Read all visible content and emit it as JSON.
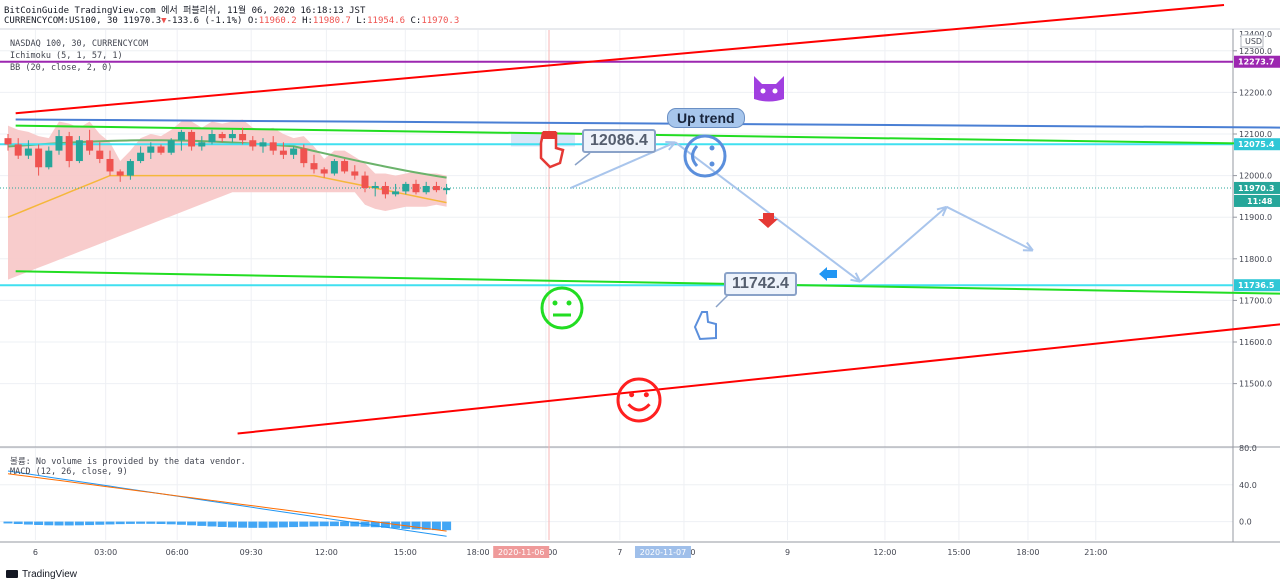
{
  "header": {
    "line1": "BitCoinGuide TradingView.com 에서 퍼블리쉬, 11월 06, 2020 16:18:13 JST",
    "symbol": "CURRENCYCOM:US100, 30",
    "last": "11970.3",
    "change_arrow": "▼",
    "change": "-133.6 (-1.1%)",
    "o_label": "O:",
    "o": "11960.2",
    "h_label": "H:",
    "h": "11980.7",
    "l_label": "L:",
    "l": "11954.6",
    "c_label": "C:",
    "c": "11970.3"
  },
  "indicators": [
    "NASDAQ 100, 30, CURRENCYCOM",
    "Ichimoku (5, 1, 57, 1)",
    "BB (20, close, 2, 0)"
  ],
  "volume_msg": "볼륨: No volume is provided by the data vendor.",
  "macd_label": "MACD (12, 26, close, 9)",
  "brand": "TradingView",
  "colors": {
    "up": "#26a69a",
    "down": "#ef5350",
    "trend_red": "#ff0000",
    "trend_green": "#22dd22",
    "cyan": "#40e0f0",
    "purple": "#9c27b0",
    "blue_line": "#4a7fd4",
    "cloud": "#f7c6c6",
    "bb_mid": "#6bb36b",
    "kijun": "#f5b73b",
    "arrow": "#a9c5ec"
  },
  "chart_data": {
    "type": "candlestick",
    "price_axis": {
      "unit": "USD",
      "range": [
        11350,
        12350
      ],
      "ticks": [
        12300,
        12200,
        12100,
        12000,
        11900,
        11800,
        11700,
        11600,
        11500
      ],
      "tick_labels": [
        "12300.0",
        "12200.0",
        "12100.0",
        "12000.0",
        "11900.0",
        "11800.0",
        "11700.0",
        "11600.0",
        "11500.0"
      ],
      "top_partial": "12400.0"
    },
    "macd_axis": {
      "range": [
        -20,
        80
      ],
      "ticks": [
        80,
        40,
        0
      ],
      "tick_labels": [
        "80.0",
        "40.0",
        "0.0"
      ]
    },
    "time_axis": {
      "labels": [
        "6",
        "03:00",
        "06:00",
        "09:30",
        "12:00",
        "15:00",
        "18:00",
        "21:00",
        "7",
        "03:00",
        "9",
        "12:00",
        "15:00",
        "18:00",
        "21:00"
      ],
      "positions": [
        0.6,
        6.3,
        12.1,
        18.1,
        24.2,
        30.6,
        36.5,
        42.0,
        48.0,
        53.2,
        61.6,
        69.5,
        75.5,
        81.1,
        86.6
      ],
      "highlight_dates": [
        {
          "label": "2020-11-06",
          "pos": 40.0,
          "color": "#ef9a9a"
        },
        {
          "label": "2020-11-07",
          "pos": 51.5,
          "color": "#9fbfea"
        }
      ]
    },
    "candles": [
      [
        12090,
        12100,
        12060,
        12075
      ],
      [
        12075,
        12090,
        12040,
        12048
      ],
      [
        12048,
        12085,
        12040,
        12065
      ],
      [
        12065,
        12075,
        12000,
        12020
      ],
      [
        12020,
        12070,
        12015,
        12060
      ],
      [
        12060,
        12110,
        12050,
        12095
      ],
      [
        12095,
        12105,
        12020,
        12035
      ],
      [
        12035,
        12095,
        12030,
        12085
      ],
      [
        12085,
        12110,
        12050,
        12060
      ],
      [
        12060,
        12080,
        12030,
        12040
      ],
      [
        12040,
        12060,
        12000,
        12010
      ],
      [
        12010,
        12015,
        11985,
        12000
      ],
      [
        12000,
        12040,
        11990,
        12035
      ],
      [
        12035,
        12070,
        12030,
        12055
      ],
      [
        12055,
        12080,
        12040,
        12070
      ],
      [
        12070,
        12075,
        12050,
        12055
      ],
      [
        12055,
        12090,
        12050,
        12085
      ],
      [
        12085,
        12110,
        12060,
        12105
      ],
      [
        12105,
        12110,
        12060,
        12070
      ],
      [
        12070,
        12095,
        12060,
        12080
      ],
      [
        12080,
        12110,
        12075,
        12100
      ],
      [
        12100,
        12105,
        12080,
        12090
      ],
      [
        12090,
        12110,
        12080,
        12100
      ],
      [
        12100,
        12115,
        12075,
        12085
      ],
      [
        12085,
        12095,
        12060,
        12070
      ],
      [
        12070,
        12090,
        12055,
        12080
      ],
      [
        12080,
        12095,
        12050,
        12060
      ],
      [
        12060,
        12080,
        12040,
        12050
      ],
      [
        12050,
        12070,
        12040,
        12065
      ],
      [
        12065,
        12075,
        12020,
        12030
      ],
      [
        12030,
        12050,
        12005,
        12015
      ],
      [
        12015,
        12020,
        11995,
        12005
      ],
      [
        12005,
        12040,
        12000,
        12035
      ],
      [
        12035,
        12040,
        12005,
        12010
      ],
      [
        12010,
        12025,
        11990,
        12000
      ],
      [
        12000,
        12010,
        11960,
        11970
      ],
      [
        11970,
        11985,
        11950,
        11975
      ],
      [
        11975,
        11985,
        11945,
        11955
      ],
      [
        11955,
        11980,
        11950,
        11962
      ],
      [
        11962,
        11985,
        11955,
        11980
      ],
      [
        11980,
        11990,
        11955,
        11960
      ],
      [
        11960,
        11985,
        11955,
        11975
      ],
      [
        11975,
        11985,
        11960,
        11965
      ],
      [
        11965,
        11980,
        11955,
        11970
      ]
    ],
    "price_labels": [
      {
        "value": 12273.7,
        "label": "12273.7",
        "color": "#9c27b0"
      },
      {
        "value": 12075.4,
        "label": "12075.4",
        "color": "#2fc7d6"
      },
      {
        "value": 11970.3,
        "label": "11970.3",
        "color": "#26a69a"
      },
      {
        "value": 11736.5,
        "label": "11736.5",
        "color": "#2fc7d6"
      }
    ],
    "countdown": "11:48",
    "levels": [
      {
        "value": 12273.7,
        "color": "#9c27b0"
      },
      {
        "value": 12075.4,
        "color": "#40e0f0"
      },
      {
        "value": 11736.5,
        "color": "#40e0f0"
      }
    ],
    "trendlines": [
      {
        "from": [
          -1,
          12150
        ],
        "to": [
          97,
          12410
        ],
        "color": "#ff0000"
      },
      {
        "from": [
          -1,
          12120
        ],
        "to": [
          104,
          12075
        ],
        "color": "#22dd22"
      },
      {
        "from": [
          -1,
          11770
        ],
        "to": [
          104,
          11715
        ],
        "color": "#22dd22"
      },
      {
        "from": [
          17,
          11380
        ],
        "to": [
          104,
          11650
        ],
        "color": "#ff0000"
      },
      {
        "from": [
          -1,
          12135
        ],
        "to": [
          104,
          12115
        ],
        "color": "#4a7fd4"
      }
    ],
    "projection": [
      [
        44,
        11970
      ],
      [
        52.5,
        12080
      ],
      [
        67.5,
        11745
      ],
      [
        74.5,
        11925
      ],
      [
        81.5,
        11820
      ]
    ],
    "annotations": [
      {
        "text": "12086.4",
        "type": "callout"
      },
      {
        "text": "11742.4",
        "type": "callout"
      },
      {
        "text": "Up trend",
        "type": "bubble"
      }
    ]
  }
}
